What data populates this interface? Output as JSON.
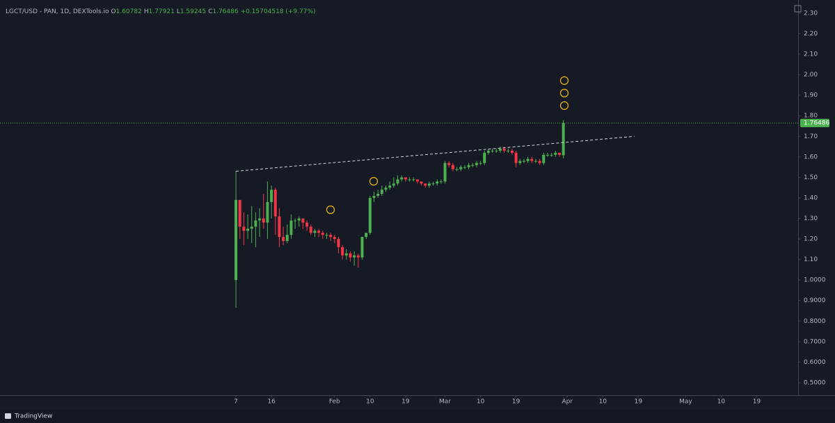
{
  "chart_data": {
    "type": "candlestick",
    "title": "LGCT/USD - PAN, 1D, DEXTools.io",
    "ohlc_keys": [
      "O",
      "H",
      "L",
      "C"
    ],
    "change_label": "+0.15704518 (+9.77%)",
    "brand": "TradingView",
    "up_color": "#4caf50",
    "down_color": "#f23645",
    "open": [
      1.0,
      1.39,
      1.26,
      1.24,
      1.25,
      1.26,
      1.29,
      1.3,
      1.28,
      1.38,
      1.44,
      1.31,
      1.21,
      1.19,
      1.22,
      1.29,
      1.29,
      1.3,
      1.28,
      1.26,
      1.23,
      1.24,
      1.23,
      1.22,
      1.22,
      1.21,
      1.2,
      1.16,
      1.12,
      1.13,
      1.11,
      1.12,
      1.11,
      1.21,
      1.23,
      1.4,
      1.41,
      1.42,
      1.44,
      1.45,
      1.46,
      1.47,
      1.49,
      1.5,
      1.49,
      1.49,
      1.49,
      1.48,
      1.47,
      1.46,
      1.47,
      1.47,
      1.48,
      1.48,
      1.57,
      1.56,
      1.54,
      1.54,
      1.55,
      1.55,
      1.56,
      1.56,
      1.57,
      1.57,
      1.62,
      1.63,
      1.63,
      1.63,
      1.64,
      1.63,
      1.63,
      1.62,
      1.57,
      1.58,
      1.58,
      1.59,
      1.58,
      1.58,
      1.57,
      1.61,
      1.61,
      1.61,
      1.62,
      1.60782
    ],
    "high": [
      1.53,
      1.39,
      1.33,
      1.32,
      1.36,
      1.33,
      1.35,
      1.42,
      1.48,
      1.46,
      1.45,
      1.35,
      1.26,
      1.27,
      1.32,
      1.3,
      1.31,
      1.3,
      1.29,
      1.27,
      1.25,
      1.25,
      1.24,
      1.23,
      1.23,
      1.22,
      1.21,
      1.17,
      1.15,
      1.14,
      1.14,
      1.13,
      1.21,
      1.23,
      1.41,
      1.43,
      1.44,
      1.46,
      1.46,
      1.48,
      1.5,
      1.51,
      1.51,
      1.5,
      1.5,
      1.5,
      1.49,
      1.48,
      1.47,
      1.48,
      1.48,
      1.49,
      1.49,
      1.58,
      1.58,
      1.57,
      1.55,
      1.56,
      1.56,
      1.57,
      1.57,
      1.58,
      1.58,
      1.63,
      1.64,
      1.64,
      1.64,
      1.65,
      1.65,
      1.64,
      1.64,
      1.63,
      1.59,
      1.59,
      1.6,
      1.6,
      1.59,
      1.59,
      1.62,
      1.62,
      1.62,
      1.63,
      1.62,
      1.77921
    ],
    "low": [
      0.865,
      1.2,
      1.17,
      1.2,
      1.18,
      1.16,
      1.21,
      1.25,
      1.2,
      1.3,
      1.22,
      1.16,
      1.17,
      1.18,
      1.2,
      1.25,
      1.26,
      1.25,
      1.24,
      1.22,
      1.21,
      1.21,
      1.2,
      1.2,
      1.19,
      1.18,
      1.13,
      1.1,
      1.1,
      1.09,
      1.07,
      1.06,
      1.1,
      1.2,
      1.22,
      1.38,
      1.4,
      1.41,
      1.43,
      1.44,
      1.45,
      1.46,
      1.48,
      1.48,
      1.48,
      1.48,
      1.47,
      1.46,
      1.45,
      1.45,
      1.46,
      1.46,
      1.47,
      1.47,
      1.55,
      1.53,
      1.53,
      1.53,
      1.54,
      1.54,
      1.55,
      1.55,
      1.56,
      1.56,
      1.61,
      1.62,
      1.62,
      1.62,
      1.62,
      1.62,
      1.61,
      1.55,
      1.56,
      1.57,
      1.57,
      1.57,
      1.57,
      1.56,
      1.56,
      1.6,
      1.6,
      1.6,
      1.6,
      1.59245
    ],
    "close": [
      1.39,
      1.26,
      1.24,
      1.25,
      1.26,
      1.29,
      1.3,
      1.28,
      1.38,
      1.44,
      1.31,
      1.21,
      1.19,
      1.22,
      1.29,
      1.29,
      1.3,
      1.28,
      1.26,
      1.23,
      1.24,
      1.23,
      1.22,
      1.22,
      1.21,
      1.2,
      1.16,
      1.12,
      1.13,
      1.11,
      1.12,
      1.11,
      1.21,
      1.23,
      1.4,
      1.41,
      1.42,
      1.44,
      1.45,
      1.46,
      1.47,
      1.49,
      1.5,
      1.49,
      1.49,
      1.49,
      1.48,
      1.47,
      1.46,
      1.47,
      1.47,
      1.48,
      1.48,
      1.57,
      1.56,
      1.54,
      1.54,
      1.55,
      1.55,
      1.56,
      1.56,
      1.57,
      1.57,
      1.62,
      1.63,
      1.63,
      1.63,
      1.64,
      1.63,
      1.63,
      1.62,
      1.57,
      1.58,
      1.58,
      1.59,
      1.58,
      1.58,
      1.57,
      1.61,
      1.61,
      1.61,
      1.62,
      1.61,
      1.76486
    ],
    "trendline": {
      "x": [
        0,
        101
      ],
      "y": [
        1.53,
        1.7
      ]
    },
    "xlim": [
      -59.8,
      142.5
    ],
    "ylim": [
      0.439,
      2.364
    ],
    "xticks": [
      {
        "value": 0,
        "label": "7"
      },
      {
        "value": 9,
        "label": "16"
      },
      {
        "value": 25,
        "label": "Feb"
      },
      {
        "value": 34,
        "label": "10"
      },
      {
        "value": 43,
        "label": "19"
      },
      {
        "value": 53,
        "label": "Mar"
      },
      {
        "value": 62,
        "label": "10"
      },
      {
        "value": 71,
        "label": "19"
      },
      {
        "value": 84,
        "label": "Apr"
      },
      {
        "value": 93,
        "label": "10"
      },
      {
        "value": 102,
        "label": "19"
      },
      {
        "value": 114,
        "label": "May"
      },
      {
        "value": 123,
        "label": "10"
      },
      {
        "value": 132,
        "label": "19"
      }
    ],
    "yticks": [
      {
        "value": 2.3,
        "label": "2.30"
      },
      {
        "value": 2.2,
        "label": "2.20"
      },
      {
        "value": 2.1,
        "label": "2.10"
      },
      {
        "value": 2.0,
        "label": "2.00"
      },
      {
        "value": 1.9,
        "label": "1.90"
      },
      {
        "value": 1.8,
        "label": "1.80"
      },
      {
        "value": 1.7,
        "label": "1.70"
      },
      {
        "value": 1.6,
        "label": "1.60"
      },
      {
        "value": 1.5,
        "label": "1.50"
      },
      {
        "value": 1.4,
        "label": "1.40"
      },
      {
        "value": 1.3,
        "label": "1.30"
      },
      {
        "value": 1.2,
        "label": "1.20"
      },
      {
        "value": 1.1,
        "label": "1.10"
      },
      {
        "value": 1.0,
        "label": "1.0000"
      },
      {
        "value": 0.9,
        "label": "0.9000"
      },
      {
        "value": 0.8,
        "label": "0.8000"
      },
      {
        "value": 0.7,
        "label": "0.7000"
      },
      {
        "value": 0.6,
        "label": "0.6000"
      },
      {
        "value": 0.5,
        "label": "0.5000"
      }
    ]
  }
}
